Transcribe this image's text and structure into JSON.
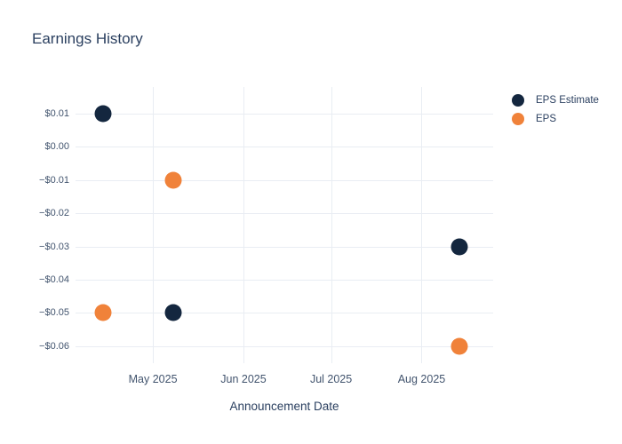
{
  "chart_data": {
    "type": "scatter",
    "title": "Earnings History",
    "xlabel": "Announcement Date",
    "ylabel": "",
    "legend_position": "top-right-outside",
    "grid": true,
    "grid_color": "#e9edf3",
    "background_color": "#ffffff",
    "title_color": "#2a3f5f",
    "tick_color": "#42546e",
    "series": [
      {
        "name": "EPS Estimate",
        "color": "#14273f",
        "points": [
          {
            "x": "2025-04-14",
            "y": 0.01
          },
          {
            "x": "2025-05-08",
            "y": -0.05
          },
          {
            "x": "2025-08-14",
            "y": -0.03
          }
        ]
      },
      {
        "name": "EPS",
        "color": "#f0823a",
        "points": [
          {
            "x": "2025-04-14",
            "y": -0.05
          },
          {
            "x": "2025-05-08",
            "y": -0.01
          },
          {
            "x": "2025-08-14",
            "y": -0.06
          }
        ]
      }
    ],
    "xticks": [
      {
        "label": "May 2025",
        "value": "2025-05-01"
      },
      {
        "label": "Jun 2025",
        "value": "2025-06-01"
      },
      {
        "label": "Jul 2025",
        "value": "2025-07-01"
      },
      {
        "label": "Aug 2025",
        "value": "2025-08-01"
      }
    ],
    "yticks": [
      {
        "label": "$0.01",
        "value": 0.01
      },
      {
        "label": "$0.00",
        "value": 0.0
      },
      {
        "label": "−$0.01",
        "value": -0.01
      },
      {
        "label": "−$0.02",
        "value": -0.02
      },
      {
        "label": "−$0.03",
        "value": -0.03
      },
      {
        "label": "−$0.04",
        "value": -0.04
      },
      {
        "label": "−$0.05",
        "value": -0.05
      },
      {
        "label": "−$0.06",
        "value": -0.06
      }
    ],
    "xlim": [
      "2025-04-04T12:00:00Z",
      "2025-08-25T12:00:00Z"
    ],
    "ylim": [
      -0.0651,
      0.018
    ]
  }
}
